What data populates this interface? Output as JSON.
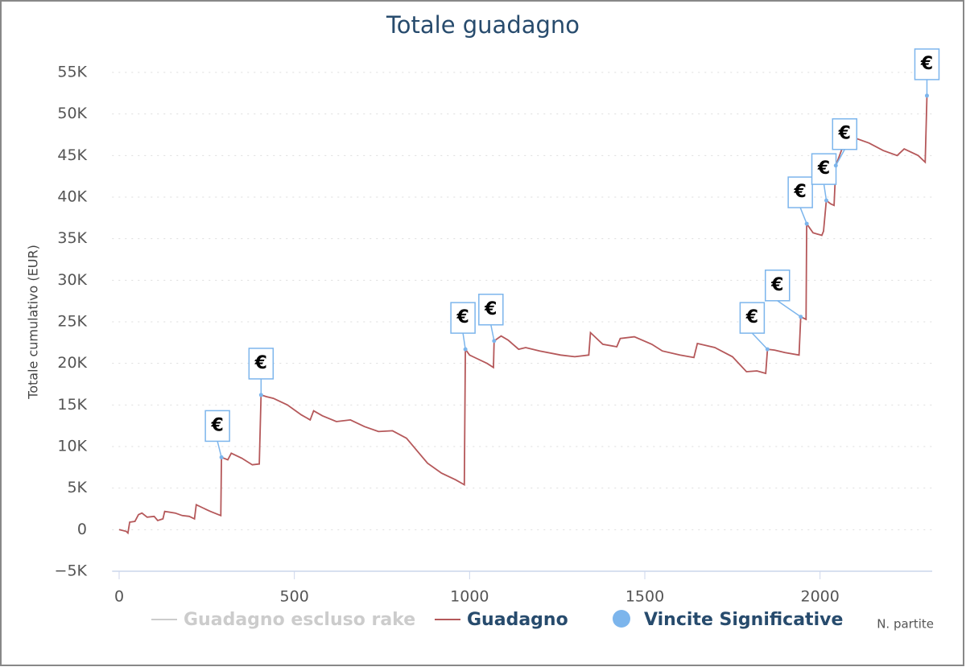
{
  "chart_data": {
    "type": "line",
    "title": "Totale guadagno",
    "ylabel": "Totale cumulativo (EUR)",
    "xlabel": "N. partite",
    "xlim": [
      -20,
      2320
    ],
    "xticks": [
      0,
      500,
      1000,
      1500,
      2000
    ],
    "ylim": [
      -5000,
      55000
    ],
    "yticks": [
      {
        "value": -5000,
        "label": "−5K"
      },
      0,
      {
        "value": 5000,
        "label": "5K"
      },
      {
        "value": 10000,
        "label": "10K"
      },
      {
        "value": 15000,
        "label": "15K"
      },
      {
        "value": 20000,
        "label": "20K"
      },
      {
        "value": 25000,
        "label": "25K"
      },
      {
        "value": 30000,
        "label": "30K"
      },
      {
        "value": 35000,
        "label": "35K"
      },
      {
        "value": 40000,
        "label": "40K"
      },
      {
        "value": 45000,
        "label": "45K"
      },
      {
        "value": 50000,
        "label": "50K"
      },
      {
        "value": 55000,
        "label": "55K"
      }
    ],
    "grid": true,
    "series": [
      {
        "name": "Guadagno escluso rake",
        "color": "#cccccc",
        "visible": false
      },
      {
        "name": "Guadagno",
        "color": "#b5585a",
        "visible": true,
        "x": [
          0,
          20,
          25,
          30,
          45,
          55,
          65,
          80,
          100,
          110,
          125,
          130,
          160,
          180,
          200,
          215,
          220,
          240,
          260,
          290,
          292,
          310,
          320,
          350,
          380,
          400,
          405,
          420,
          440,
          480,
          520,
          545,
          555,
          580,
          620,
          660,
          700,
          740,
          780,
          820,
          850,
          880,
          920,
          960,
          985,
          988,
          1000,
          1020,
          1050,
          1068,
          1070,
          1090,
          1110,
          1140,
          1160,
          1200,
          1260,
          1300,
          1340,
          1345,
          1380,
          1420,
          1430,
          1470,
          1520,
          1550,
          1600,
          1640,
          1650,
          1700,
          1750,
          1790,
          1820,
          1845,
          1850,
          1870,
          1900,
          1940,
          1945,
          1960,
          1962,
          1980,
          2005,
          2010,
          2018,
          2030,
          2040,
          2045,
          2060,
          2080,
          2100,
          2140,
          2180,
          2220,
          2240,
          2280,
          2300,
          2305
        ],
        "values": [
          0,
          -200,
          -400,
          900,
          1000,
          1800,
          2000,
          1500,
          1600,
          1100,
          1300,
          2200,
          2000,
          1700,
          1600,
          1300,
          3000,
          2600,
          2200,
          1700,
          8700,
          8400,
          9200,
          8600,
          7800,
          7900,
          16200,
          16000,
          15800,
          15000,
          13800,
          13200,
          14300,
          13700,
          13000,
          13200,
          12400,
          11800,
          11900,
          11000,
          9500,
          8000,
          6800,
          6000,
          5400,
          21700,
          21000,
          20600,
          20000,
          19500,
          22700,
          23300,
          22800,
          21700,
          21900,
          21500,
          21000,
          20800,
          21000,
          23700,
          22300,
          22000,
          23000,
          23200,
          22300,
          21500,
          21000,
          20700,
          22400,
          21900,
          20800,
          19000,
          19100,
          18800,
          21700,
          21600,
          21300,
          21000,
          25600,
          25300,
          36800,
          35700,
          35400,
          35900,
          39600,
          39200,
          39000,
          43800,
          45500,
          47800,
          47100,
          46500,
          45600,
          45000,
          45800,
          45000,
          44200,
          52200
        ]
      },
      {
        "name": "Vincite Significative",
        "color": "#7cb5ec",
        "visible": true,
        "type": "scatter",
        "flag": "€",
        "x": [
          292,
          405,
          988,
          1070,
          1850,
          1945,
          1962,
          2018,
          2045,
          2305
        ],
        "values": [
          8700,
          16200,
          21700,
          22700,
          21700,
          25600,
          36800,
          39600,
          43800,
          52200
        ]
      }
    ]
  }
}
